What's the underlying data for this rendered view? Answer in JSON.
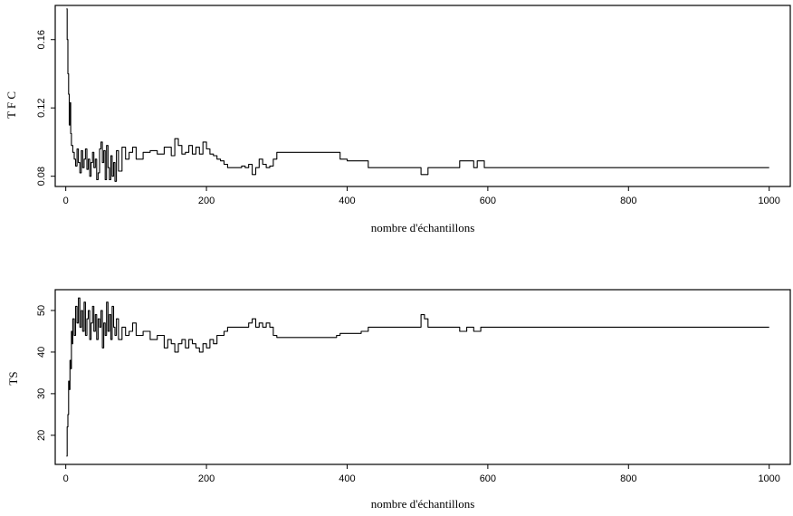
{
  "chart_data": [
    {
      "type": "line",
      "title": "",
      "xlabel": "nombre d'échantillons",
      "ylabel": "T F C",
      "xlim": [
        -15,
        1030
      ],
      "ylim": [
        0.074,
        0.18
      ],
      "xticks": [
        0,
        200,
        400,
        600,
        800,
        1000
      ],
      "yticks": [
        0.08,
        0.12,
        0.16
      ],
      "ytick_labels": [
        "0.08",
        "0.12",
        "0.16"
      ],
      "grid": false,
      "series": [
        {
          "x": [
            1,
            2,
            3,
            4,
            5,
            6,
            7,
            8,
            10,
            12,
            14,
            16,
            18,
            20,
            22,
            24,
            26,
            28,
            30,
            32,
            34,
            36,
            38,
            40,
            42,
            44,
            46,
            48,
            50,
            52,
            54,
            56,
            58,
            60,
            62,
            64,
            66,
            68,
            70,
            72,
            75,
            80,
            85,
            90,
            95,
            100,
            110,
            120,
            130,
            140,
            150,
            155,
            160,
            165,
            170,
            175,
            180,
            185,
            190,
            195,
            200,
            205,
            210,
            215,
            220,
            225,
            230,
            240,
            250,
            255,
            260,
            265,
            270,
            275,
            280,
            285,
            290,
            295,
            300,
            330,
            360,
            385,
            390,
            400,
            420,
            430,
            440,
            460,
            480,
            500,
            505,
            510,
            515,
            540,
            555,
            560,
            570,
            580,
            585,
            590,
            595,
            620,
            700,
            800,
            900,
            1000
          ],
          "y": [
            0.178,
            0.16,
            0.14,
            0.128,
            0.11,
            0.123,
            0.105,
            0.098,
            0.094,
            0.09,
            0.086,
            0.096,
            0.088,
            0.082,
            0.095,
            0.085,
            0.09,
            0.096,
            0.084,
            0.09,
            0.08,
            0.088,
            0.094,
            0.085,
            0.09,
            0.078,
            0.082,
            0.096,
            0.1,
            0.088,
            0.095,
            0.078,
            0.098,
            0.085,
            0.078,
            0.092,
            0.08,
            0.088,
            0.077,
            0.095,
            0.083,
            0.097,
            0.09,
            0.094,
            0.097,
            0.09,
            0.094,
            0.095,
            0.093,
            0.097,
            0.092,
            0.102,
            0.098,
            0.093,
            0.094,
            0.098,
            0.093,
            0.097,
            0.093,
            0.1,
            0.096,
            0.093,
            0.092,
            0.09,
            0.089,
            0.087,
            0.085,
            0.085,
            0.086,
            0.085,
            0.087,
            0.081,
            0.085,
            0.09,
            0.087,
            0.085,
            0.086,
            0.09,
            0.094,
            0.094,
            0.094,
            0.094,
            0.09,
            0.089,
            0.089,
            0.085,
            0.085,
            0.085,
            0.085,
            0.085,
            0.081,
            0.081,
            0.085,
            0.085,
            0.085,
            0.089,
            0.089,
            0.085,
            0.089,
            0.089,
            0.085,
            0.085,
            0.085,
            0.085,
            0.085,
            0.085
          ]
        }
      ]
    },
    {
      "type": "line",
      "title": "",
      "xlabel": "nombre d'échantillons",
      "ylabel": "TS",
      "xlim": [
        -15,
        1030
      ],
      "ylim": [
        13,
        55
      ],
      "xticks": [
        0,
        200,
        400,
        600,
        800,
        1000
      ],
      "yticks": [
        20,
        30,
        40,
        50
      ],
      "ytick_labels": [
        "20",
        "30",
        "40",
        "50"
      ],
      "grid": false,
      "series": [
        {
          "x": [
            1,
            2,
            3,
            4,
            5,
            6,
            7,
            8,
            9,
            10,
            12,
            14,
            16,
            18,
            20,
            22,
            24,
            26,
            28,
            30,
            32,
            34,
            36,
            38,
            40,
            42,
            44,
            46,
            48,
            50,
            52,
            54,
            56,
            58,
            60,
            62,
            64,
            66,
            68,
            70,
            72,
            75,
            80,
            85,
            90,
            95,
            100,
            110,
            120,
            130,
            140,
            145,
            150,
            155,
            160,
            165,
            170,
            175,
            180,
            185,
            190,
            195,
            200,
            205,
            210,
            215,
            220,
            225,
            230,
            240,
            250,
            260,
            265,
            270,
            275,
            280,
            285,
            290,
            295,
            300,
            330,
            360,
            385,
            390,
            420,
            430,
            460,
            500,
            505,
            510,
            515,
            540,
            555,
            560,
            570,
            580,
            585,
            590,
            595,
            620,
            700,
            800,
            900,
            1000
          ],
          "y": [
            15,
            22,
            25,
            33,
            31,
            38,
            36,
            45,
            42,
            48,
            44,
            51,
            47,
            53,
            46,
            50,
            45,
            52,
            44,
            48,
            50,
            43,
            47,
            51,
            45,
            49,
            43,
            48,
            46,
            50,
            41,
            47,
            44,
            52,
            45,
            49,
            43,
            51,
            46,
            44,
            48,
            43,
            46,
            44,
            45,
            47,
            44,
            45,
            43,
            44,
            41,
            43,
            42,
            40,
            42,
            43,
            41,
            43,
            42,
            41,
            40,
            42,
            41,
            43,
            42,
            44,
            44,
            45,
            46,
            46,
            46,
            47,
            48,
            46,
            47,
            46,
            47,
            46,
            44,
            43.5,
            43.5,
            43.5,
            44,
            44.5,
            45,
            46,
            46,
            46,
            49,
            48,
            46,
            46,
            46,
            45,
            46,
            45,
            45,
            46,
            46,
            46,
            46,
            46,
            46,
            46
          ]
        }
      ]
    }
  ]
}
